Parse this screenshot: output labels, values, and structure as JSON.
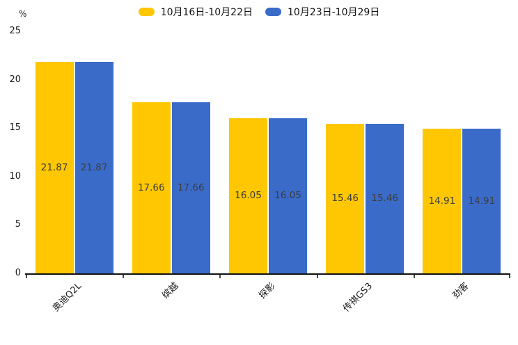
{
  "chart_data": {
    "type": "bar",
    "title": "",
    "categories": [
      "奥迪Q2L",
      "缤越",
      "探影",
      "传祺GS3",
      "劲客"
    ],
    "series": [
      {
        "name": "10月16日-10月22日",
        "color": "#FEC701",
        "values": [
          21.87,
          17.66,
          16.05,
          15.46,
          14.91
        ]
      },
      {
        "name": "10月23日-10月29日",
        "color": "#3A6BC9",
        "values": [
          21.87,
          17.66,
          16.05,
          15.46,
          14.91
        ]
      }
    ],
    "value_labels": [
      "21.87",
      "17.66",
      "16.05",
      "15.46",
      "14.91"
    ],
    "xlabel": "",
    "ylabel": "%",
    "ylim": [
      0,
      25
    ],
    "yticks": [
      0,
      5,
      10,
      15,
      20,
      25
    ],
    "grid": false,
    "legend_position": "top-center",
    "value_label_color": "#3d3d3d",
    "axis_text_color": "#1a1a1a",
    "axis_line_color": "#111111",
    "background_color": "#ffffff"
  }
}
